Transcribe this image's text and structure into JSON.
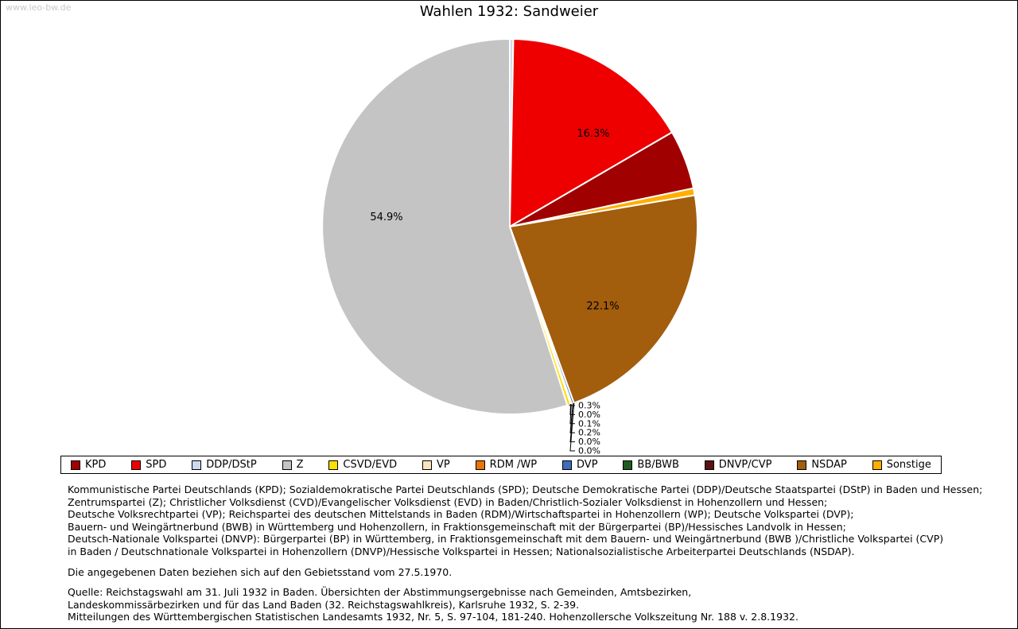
{
  "watermark": "www.leo-bw.de",
  "title": "Wahlen 1932: Sandweier",
  "chart_data": {
    "type": "pie",
    "title": "Wahlen 1932: Sandweier",
    "unit": "percent",
    "legend_position": "bottom",
    "slices": [
      {
        "party": "KPD",
        "value": 5.1,
        "display": "5.1%",
        "color": "#a00000"
      },
      {
        "party": "SPD",
        "value": 16.3,
        "display": "16.3%",
        "color": "#ee0000"
      },
      {
        "party": "DDP/DStP",
        "value": 0.3,
        "display": "0.3%",
        "color": "#ccd9ee"
      },
      {
        "party": "Z",
        "value": 54.9,
        "display": "54.9%",
        "color": "#c4c4c4"
      },
      {
        "party": "CSVD/EVD",
        "value": 0.3,
        "display": "0.3%",
        "color": "#ffdf00"
      },
      {
        "party": "VP",
        "value": 0.0,
        "display": "0.0%",
        "color": "#fbe3c0"
      },
      {
        "party": "RDM /WP",
        "value": 0.1,
        "display": "0.1%",
        "color": "#ea7500"
      },
      {
        "party": "DVP",
        "value": 0.2,
        "display": "0.2%",
        "color": "#3e6dbe"
      },
      {
        "party": "BB/BWB",
        "value": 0.0,
        "display": "0.0%",
        "color": "#1e5b1e"
      },
      {
        "party": "DNVP/CVP",
        "value": 0.0,
        "display": "0.0%",
        "color": "#5a1212"
      },
      {
        "party": "NSDAP",
        "value": 22.1,
        "display": "22.1%",
        "color": "#a25d0d"
      },
      {
        "party": "Sonstige",
        "value": 0.6,
        "display": "0.6%",
        "color": "#ffaf00"
      }
    ],
    "draw_order_clockwise_from_top": [
      "DDP/DStP",
      "SPD",
      "KPD",
      "Sonstige",
      "NSDAP",
      "DNVP/CVP",
      "BB/BWB",
      "DVP",
      "RDM /WP",
      "VP",
      "CSVD/EVD",
      "Z"
    ]
  },
  "footnotes": {
    "party_definitions": [
      "Kommunistische Partei Deutschlands (KPD); Sozialdemokratische Partei Deutschlands (SPD); Deutsche Demokratische Partei (DDP)/Deutsche Staatspartei (DStP) in Baden und Hessen;",
      "Zentrumspartei (Z); Christlicher Volksdienst (CVD)/Evangelischer Volksdienst (EVD) in Baden/Christlich-Sozialer Volksdienst in Hohenzollern und Hessen;",
      "Deutsche Volksrechtpartei (VP); Reichspartei des deutschen Mittelstands in Baden (RDM)/Wirtschaftspartei in Hohenzollern (WP); Deutsche Volkspartei (DVP);",
      "Bauern- und Weingärtnerbund (BWB) in Württemberg und Hohenzollern, in Fraktionsgemeinschaft mit der Bürgerpartei (BP)/Hessisches Landvolk in Hessen;",
      "Deutsch-Nationale Volkspartei (DNVP): Bürgerpartei (BP) in Württemberg, in Fraktionsgemeinschaft mit dem Bauern- und Weingärtnerbund (BWB )/Christliche Volkspartei (CVP)",
      "in Baden / Deutschnationale Volkspartei in Hohenzollern (DNVP)/Hessische Volkspartei in Hessen; Nationalsozialistische Arbeiterpartei Deutschlands (NSDAP)."
    ],
    "territorial_note": "Die angegebenen Daten beziehen sich auf den Gebietsstand vom 27.5.1970.",
    "source": [
      "Quelle: Reichstagswahl am 31. Juli 1932 in Baden. Übersichten der Abstimmungsergebnisse nach Gemeinden, Amtsbezirken,",
      "Landeskommissärbezirken und für das Land Baden (32. Reichstagswahlkreis), Karlsruhe 1932, S. 2-39.",
      "Mitteilungen des Württembergischen Statistischen Landesamts 1932, Nr. 5, S. 97-104, 181-240. Hohenzollersche Volkszeitung Nr. 188 v. 2.8.1932."
    ]
  }
}
